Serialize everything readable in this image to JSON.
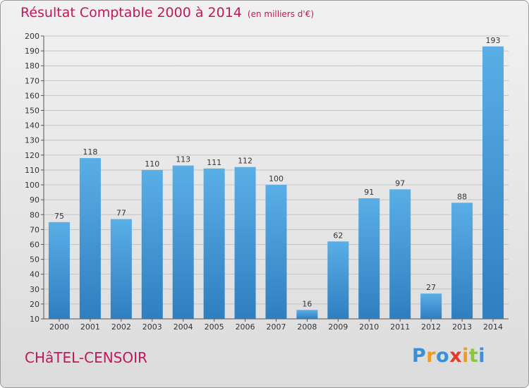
{
  "header": {
    "title": "Résultat Comptable 2000 à 2014",
    "subtitle": "(en milliers d'€)"
  },
  "footer": {
    "commune": "CHâTEL-CENSOIR",
    "logo": "Proxiti"
  },
  "colors": {
    "title": "#c2185b",
    "bar_light": "#5aaee6",
    "bar_dark": "#2f7fc0",
    "logo": [
      "#3a8fd6",
      "#f29a1e",
      "#3a8fd6",
      "#e23b2a",
      "#f29a1e",
      "#8cc63f",
      "#3a8fd6"
    ]
  },
  "chart_data": {
    "type": "bar",
    "title": "Résultat Comptable 2000 à 2014",
    "unit": "(en milliers d'€)",
    "categories": [
      "2000",
      "2001",
      "2002",
      "2003",
      "2004",
      "2005",
      "2006",
      "2007",
      "2008",
      "2009",
      "2010",
      "2011",
      "2012",
      "2013",
      "2014"
    ],
    "values": [
      75,
      118,
      77,
      110,
      113,
      111,
      112,
      100,
      16,
      62,
      91,
      97,
      27,
      88,
      193
    ],
    "ylim": [
      10,
      200
    ],
    "yticks": [
      10,
      20,
      30,
      40,
      50,
      60,
      70,
      80,
      90,
      100,
      110,
      120,
      130,
      140,
      150,
      160,
      170,
      180,
      190,
      200
    ],
    "grid": true,
    "xlabel": "",
    "ylabel": ""
  }
}
